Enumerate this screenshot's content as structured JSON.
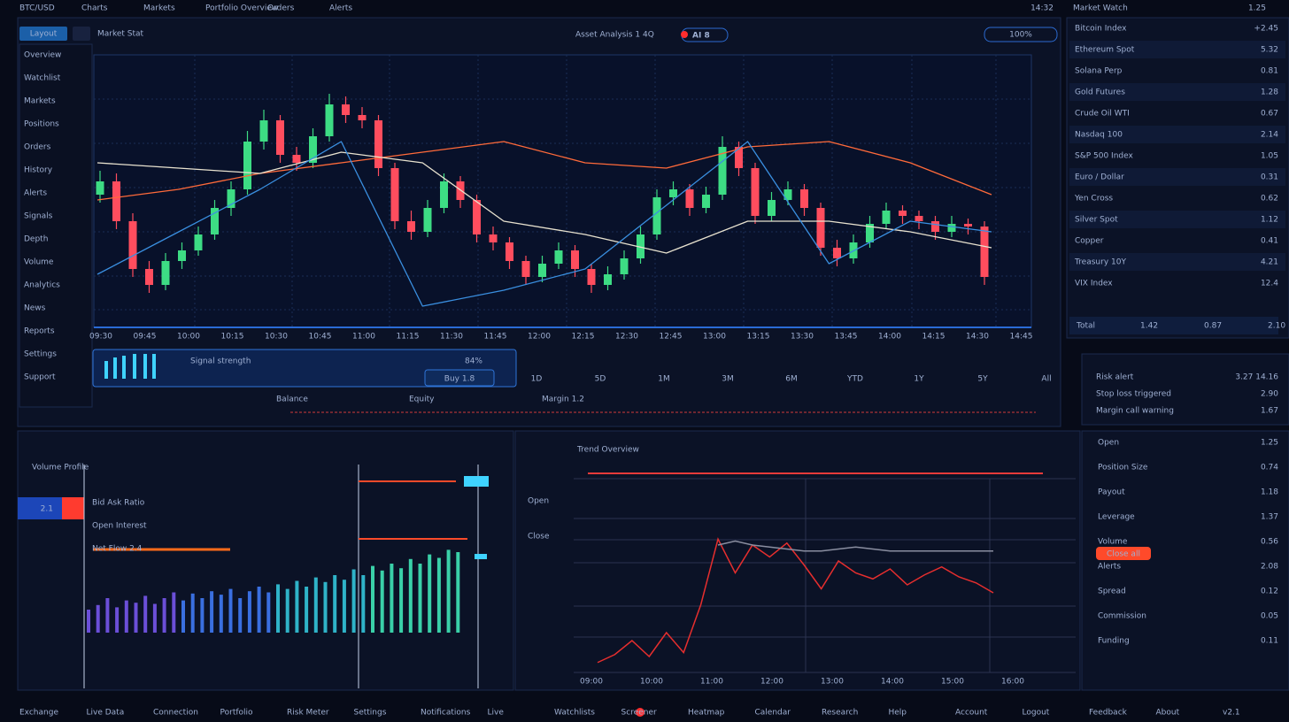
{
  "top_bar": {
    "items": [
      "BTC/USD",
      "Charts",
      "Markets",
      "Portfolio Overview",
      "Orders",
      "Alerts"
    ],
    "clock": "14:32"
  },
  "toolbar": {
    "tab": "Layout",
    "symbol": "Market Stat",
    "ticker": "Asset Analysis 1 4Q",
    "badge": "AI 8",
    "zoom": "100%"
  },
  "left_menu": [
    "Overview",
    "Watchlist",
    "Markets",
    "Positions",
    "Orders",
    "History",
    "Alerts",
    "Signals",
    "Depth",
    "Volume",
    "Analytics",
    "News",
    "Reports",
    "Settings",
    "Support"
  ],
  "main_chart": {
    "ylim": [
      0,
      100
    ],
    "up_color": "#3ddc84",
    "down_color": "#ff4d5e",
    "candles": [
      [
        50,
        59,
        47,
        55
      ],
      [
        55,
        58,
        37,
        40
      ],
      [
        40,
        43,
        19,
        22
      ],
      [
        22,
        25,
        13,
        16
      ],
      [
        16,
        28,
        14,
        25
      ],
      [
        25,
        32,
        22,
        29
      ],
      [
        29,
        38,
        27,
        35
      ],
      [
        35,
        48,
        33,
        45
      ],
      [
        45,
        55,
        42,
        52
      ],
      [
        52,
        74,
        50,
        70
      ],
      [
        70,
        82,
        67,
        78
      ],
      [
        78,
        80,
        62,
        65
      ],
      [
        65,
        68,
        59,
        62
      ],
      [
        62,
        75,
        60,
        72
      ],
      [
        72,
        88,
        70,
        84
      ],
      [
        84,
        87,
        77,
        80
      ],
      [
        80,
        83,
        75,
        78
      ],
      [
        78,
        80,
        57,
        60
      ],
      [
        60,
        62,
        37,
        40
      ],
      [
        40,
        44,
        33,
        36
      ],
      [
        36,
        48,
        34,
        45
      ],
      [
        45,
        58,
        43,
        55
      ],
      [
        55,
        57,
        45,
        48
      ],
      [
        48,
        50,
        32,
        35
      ],
      [
        35,
        38,
        29,
        32
      ],
      [
        32,
        34,
        22,
        25
      ],
      [
        25,
        27,
        16,
        19
      ],
      [
        19,
        27,
        17,
        24
      ],
      [
        24,
        32,
        22,
        29
      ],
      [
        29,
        31,
        19,
        22
      ],
      [
        22,
        24,
        13,
        16
      ],
      [
        16,
        23,
        14,
        20
      ],
      [
        20,
        29,
        18,
        26
      ],
      [
        26,
        38,
        24,
        35
      ],
      [
        35,
        52,
        33,
        49
      ],
      [
        49,
        55,
        46,
        52
      ],
      [
        52,
        54,
        42,
        45
      ],
      [
        45,
        53,
        43,
        50
      ],
      [
        50,
        72,
        48,
        68
      ],
      [
        68,
        70,
        57,
        60
      ],
      [
        60,
        62,
        39,
        42
      ],
      [
        42,
        51,
        40,
        48
      ],
      [
        48,
        55,
        46,
        52
      ],
      [
        52,
        54,
        42,
        45
      ],
      [
        45,
        47,
        27,
        30
      ],
      [
        30,
        33,
        23,
        26
      ],
      [
        26,
        35,
        24,
        32
      ],
      [
        32,
        42,
        30,
        39
      ],
      [
        39,
        47,
        37,
        44
      ],
      [
        44,
        46,
        39,
        42
      ],
      [
        42,
        44,
        37,
        40
      ],
      [
        40,
        42,
        33,
        36
      ],
      [
        36,
        42,
        34,
        39
      ],
      [
        39,
        41,
        35,
        38
      ],
      [
        38,
        40,
        16,
        19
      ]
    ],
    "lines": [
      {
        "color": "#ff6a3a",
        "values": [
          48,
          52,
          58,
          62,
          66,
          70,
          62,
          60,
          68,
          70,
          62,
          50
        ]
      },
      {
        "color": "#e8e2cf",
        "values": [
          62,
          60,
          58,
          66,
          62,
          40,
          35,
          28,
          40,
          40,
          36,
          30
        ]
      },
      {
        "color": "#3a8fe0",
        "values": [
          20,
          36,
          52,
          70,
          8,
          14,
          22,
          46,
          70,
          24,
          40,
          36
        ]
      }
    ]
  },
  "time_labels": [
    "09:30",
    "09:45",
    "10:00",
    "10:15",
    "10:30",
    "10:45",
    "11:00",
    "11:15",
    "11:30",
    "11:45",
    "12:00",
    "12:15",
    "12:30",
    "12:45",
    "13:00",
    "13:15",
    "13:30",
    "13:45",
    "14:00",
    "14:15",
    "14:30",
    "14:45"
  ],
  "range_tabs": [
    "1D",
    "5D",
    "1M",
    "3M",
    "6M",
    "YTD",
    "1Y",
    "5Y",
    "All"
  ],
  "status_panel": {
    "label": "Signal strength",
    "value": "84%",
    "button": "Buy 1.8",
    "footer": [
      "Balance",
      "Equity",
      "Margin 1.2"
    ]
  },
  "watch_panel": {
    "header": [
      "Market Watch",
      "1.25"
    ],
    "rows": [
      [
        "Bitcoin Index",
        "+2.45"
      ],
      [
        "Ethereum Spot",
        "5.32"
      ],
      [
        "Solana Perp",
        "0.81"
      ],
      [
        "Gold Futures",
        "1.28"
      ],
      [
        "Crude Oil WTI",
        "0.67"
      ],
      [
        "Nasdaq 100",
        "2.14"
      ],
      [
        "S&P 500 Index",
        "1.05"
      ],
      [
        "Euro / Dollar",
        "0.31"
      ],
      [
        "Yen Cross",
        "0.62"
      ],
      [
        "Silver Spot",
        "1.12"
      ],
      [
        "Copper",
        "0.41"
      ],
      [
        "Treasury 10Y",
        "4.21"
      ],
      [
        "VIX Index",
        "12.4"
      ]
    ],
    "summary": [
      "Total",
      "1.42",
      "0.87",
      "2.10"
    ]
  },
  "alert_panel": {
    "rows": [
      [
        "Risk alert",
        "3.27 14.16"
      ],
      [
        "Stop loss triggered",
        "2.90"
      ],
      [
        "Margin call warning",
        "1.67"
      ]
    ]
  },
  "volume_chart": {
    "title": "Volume Profile",
    "ylim": [
      0,
      100
    ],
    "tag": "2.1",
    "notes": [
      "Bid Ask Ratio",
      "Open Interest",
      "Net Flow 2.4"
    ],
    "values": [
      20,
      24,
      30,
      22,
      28,
      26,
      32,
      25,
      30,
      35,
      28,
      34,
      30,
      36,
      33,
      38,
      30,
      36,
      40,
      35,
      42,
      38,
      45,
      40,
      48,
      44,
      50,
      46,
      55,
      50,
      58,
      54,
      60,
      56,
      64,
      60,
      68,
      65,
      72,
      70
    ]
  },
  "trend_chart": {
    "title": "Trend Overview",
    "ylim": [
      0,
      100
    ],
    "y_labels": [
      "Open",
      "Close"
    ],
    "x_labels": [
      "09:00",
      "10:00",
      "11:00",
      "12:00",
      "13:00",
      "14:00",
      "15:00",
      "16:00"
    ],
    "series": [
      {
        "color": "#e62e2e",
        "values": [
          5,
          9,
          16,
          8,
          20,
          10,
          34,
          67,
          50,
          64,
          58,
          65,
          54,
          42,
          56,
          50,
          47,
          52,
          44,
          49,
          53,
          48,
          45,
          40
        ]
      },
      {
        "color": "#8a8ea0",
        "values": [
          null,
          null,
          null,
          null,
          null,
          null,
          null,
          64,
          66,
          64,
          63,
          62,
          61,
          61,
          62,
          63,
          62,
          61,
          61,
          61,
          61,
          61,
          61,
          61
        ]
      }
    ]
  },
  "detail_panel": {
    "rows": [
      [
        "Open",
        "1.25"
      ],
      [
        "Position Size",
        "0.74"
      ],
      [
        "Payout",
        "1.18"
      ],
      [
        "Leverage",
        "1.37"
      ],
      [
        "Volume",
        "0.56"
      ],
      [
        "Alerts",
        "2.08"
      ],
      [
        "Spread",
        "0.12"
      ],
      [
        "Commission",
        "0.05"
      ],
      [
        "Funding",
        "0.11"
      ]
    ],
    "alert": "Close all"
  },
  "footer": [
    "Exchange",
    "Live Data",
    "Connection",
    "Portfolio",
    "Risk Meter",
    "Settings",
    "Notifications",
    "Live",
    "Watchlists",
    "Screener",
    "Heatmap",
    "Calendar",
    "Research",
    "Help",
    "Account",
    "Logout",
    "Feedback",
    "About",
    "v2.1"
  ]
}
